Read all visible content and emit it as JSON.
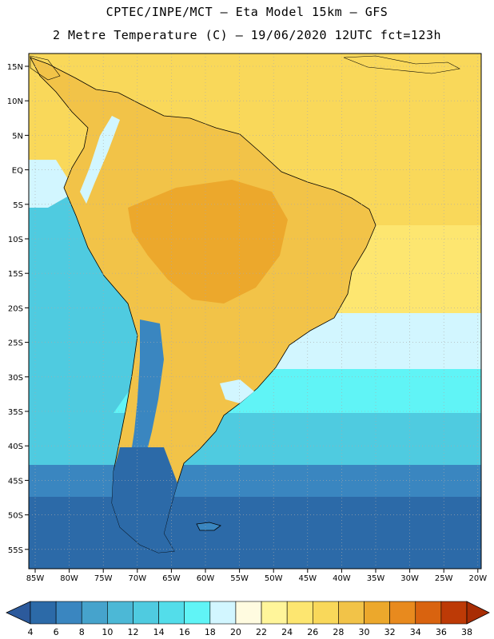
{
  "header": {
    "line1": "CPTEC/INPE/MCT –  Eta Model 15km – GFS",
    "line2": "2 Metre Temperature (C) – 19/06/2020 12UTC fct=123h"
  },
  "axes": {
    "lat_labels": [
      "15N",
      "10N",
      "5N",
      "EQ",
      "5S",
      "10S",
      "15S",
      "20S",
      "25S",
      "30S",
      "35S",
      "40S",
      "45S",
      "50S",
      "55S"
    ],
    "lon_labels": [
      "85W",
      "80W",
      "75W",
      "70W",
      "65W",
      "60W",
      "55W",
      "50W",
      "45W",
      "40W",
      "35W",
      "30W",
      "25W",
      "20W"
    ]
  },
  "colorbar": {
    "labels": [
      "4",
      "6",
      "8",
      "10",
      "12",
      "14",
      "16",
      "18",
      "20",
      "22",
      "24",
      "26",
      "28",
      "30",
      "32",
      "34",
      "36",
      "38"
    ],
    "colors": [
      "#2c6aa8",
      "#3a86c0",
      "#46a3cc",
      "#4cb8d6",
      "#4fcbe0",
      "#53ddea",
      "#60f4f6",
      "#d2f6ff",
      "#fffbe0",
      "#fff59a",
      "#fde670",
      "#f9d85a",
      "#f2c348",
      "#eca82c",
      "#e88a1e",
      "#d9630f",
      "#bd3a06"
    ],
    "low_end_color": "#2c5a9c",
    "high_end_color": "#a82d04"
  },
  "map_colors": {
    "ocean_south": "#2c6aa8",
    "ocean_mid": "#3a86c0",
    "ocean_cool": "#4fcbe0",
    "ocean_cyan": "#60f4f6",
    "ocean_pale": "#d2f6ff",
    "ocean_warm": "#fde670",
    "ocean_tropic": "#f9d85a",
    "land_warm": "#f2c348",
    "land_hot": "#eca82c",
    "andes_cold": "#3a86c0",
    "patagonia": "#2c6aa8"
  }
}
